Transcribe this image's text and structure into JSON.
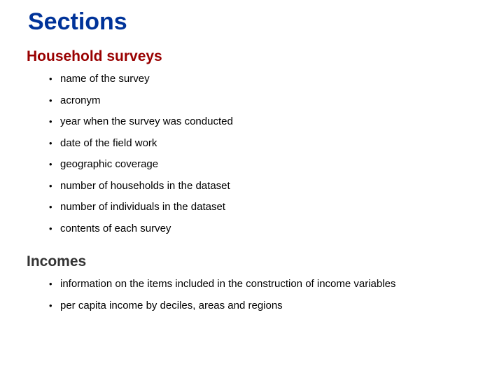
{
  "title": "Sections",
  "colors": {
    "title": "#003399",
    "heading_hs": "#990000",
    "heading_inc": "#333333",
    "body_text": "#000000",
    "background": "#ffffff"
  },
  "typography": {
    "title_fontsize": 34,
    "heading_fontsize": 21,
    "bullet_fontsize": 15,
    "font_family": "Arial"
  },
  "sections": [
    {
      "heading": "Household surveys",
      "heading_color": "#990000",
      "items": [
        "name of the survey",
        "acronym",
        "year when the survey was conducted",
        "date of the field work",
        "geographic coverage",
        "number of households in the dataset",
        "number of individuals in the dataset",
        "contents of each survey"
      ]
    },
    {
      "heading": "Incomes",
      "heading_color": "#333333",
      "items": [
        "information on the items included in the construction of income variables",
        "per capita income by deciles, areas and regions"
      ]
    }
  ]
}
